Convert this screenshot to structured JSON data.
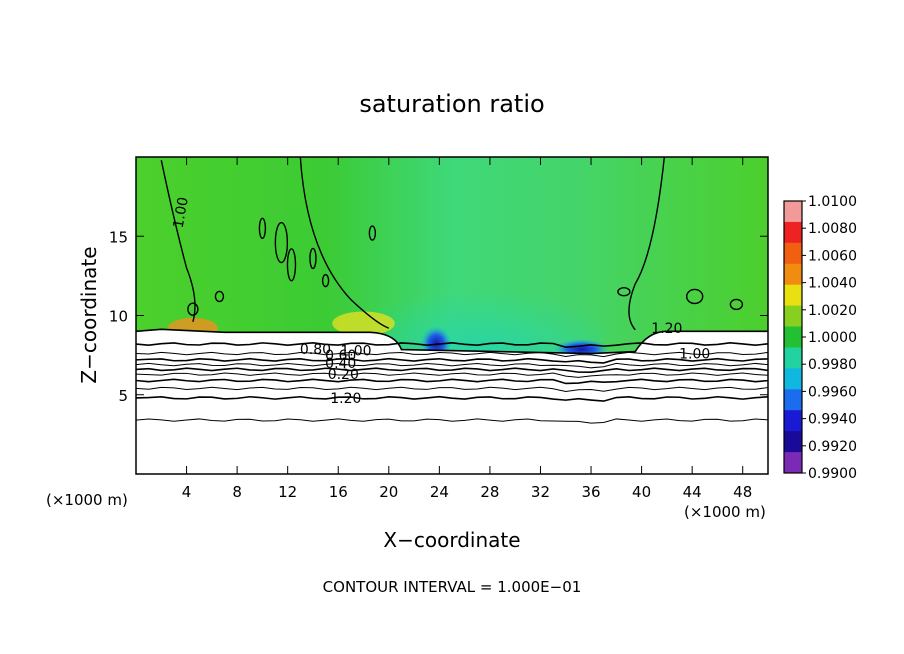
{
  "chart_data": {
    "type": "heatmap",
    "title": "saturation ratio",
    "xlabel": "X−coordinate",
    "ylabel": "Z−coordinate",
    "x_unit_left": "(×1000 m)",
    "x_unit_right": "(×1000 m)",
    "xlim": [
      0,
      50
    ],
    "ylim": [
      0,
      20
    ],
    "x_ticks": [
      4,
      8,
      12,
      16,
      20,
      24,
      28,
      32,
      36,
      40,
      44,
      48
    ],
    "y_ticks": [
      5,
      10,
      15
    ],
    "footer": "CONTOUR INTERVAL = 1.000E−01",
    "colorbar": {
      "labels": [
        "1.0100",
        "1.0080",
        "1.0060",
        "1.0040",
        "1.0020",
        "1.0000",
        "0.9980",
        "0.9960",
        "0.9940",
        "0.9920",
        "0.9900"
      ],
      "colors": [
        "#f19a9a",
        "#ee2222",
        "#f06010",
        "#f08c10",
        "#e8e010",
        "#88d020",
        "#22c032",
        "#22d2a0",
        "#10b8e0",
        "#1c6cf0",
        "#1a1ad4",
        "#1a0a9a",
        "#7a2ab4"
      ]
    },
    "contour_labels": [
      "1.00",
      "1.20",
      "1.00",
      "0.80",
      "0.60",
      "0.40",
      "0.20",
      "1.20",
      "1.00"
    ],
    "field": {
      "background_value": 1.0,
      "layer_top_left_z": 9.0,
      "layer_top_right_z": 9.0,
      "layer_top_center_z": 7.6,
      "dry_contours_z": [
        8.2,
        7.6,
        7.2,
        6.9,
        6.6,
        6.3,
        5.9,
        5.4,
        4.8,
        3.4
      ],
      "dry_regions": [
        {
          "x": [
            23,
            24.5
          ],
          "z": [
            7.6,
            9.3
          ],
          "value": 0.991
        },
        {
          "x": [
            33.5,
            37
          ],
          "z": [
            7.6,
            8.4
          ],
          "value": 0.9915
        },
        {
          "x": [
            16,
            20
          ],
          "z": [
            9.0,
            10.0
          ],
          "value": 1.003
        },
        {
          "x": [
            3,
            6
          ],
          "z": [
            8.8,
            9.6
          ],
          "value": 1.005
        }
      ]
    }
  }
}
